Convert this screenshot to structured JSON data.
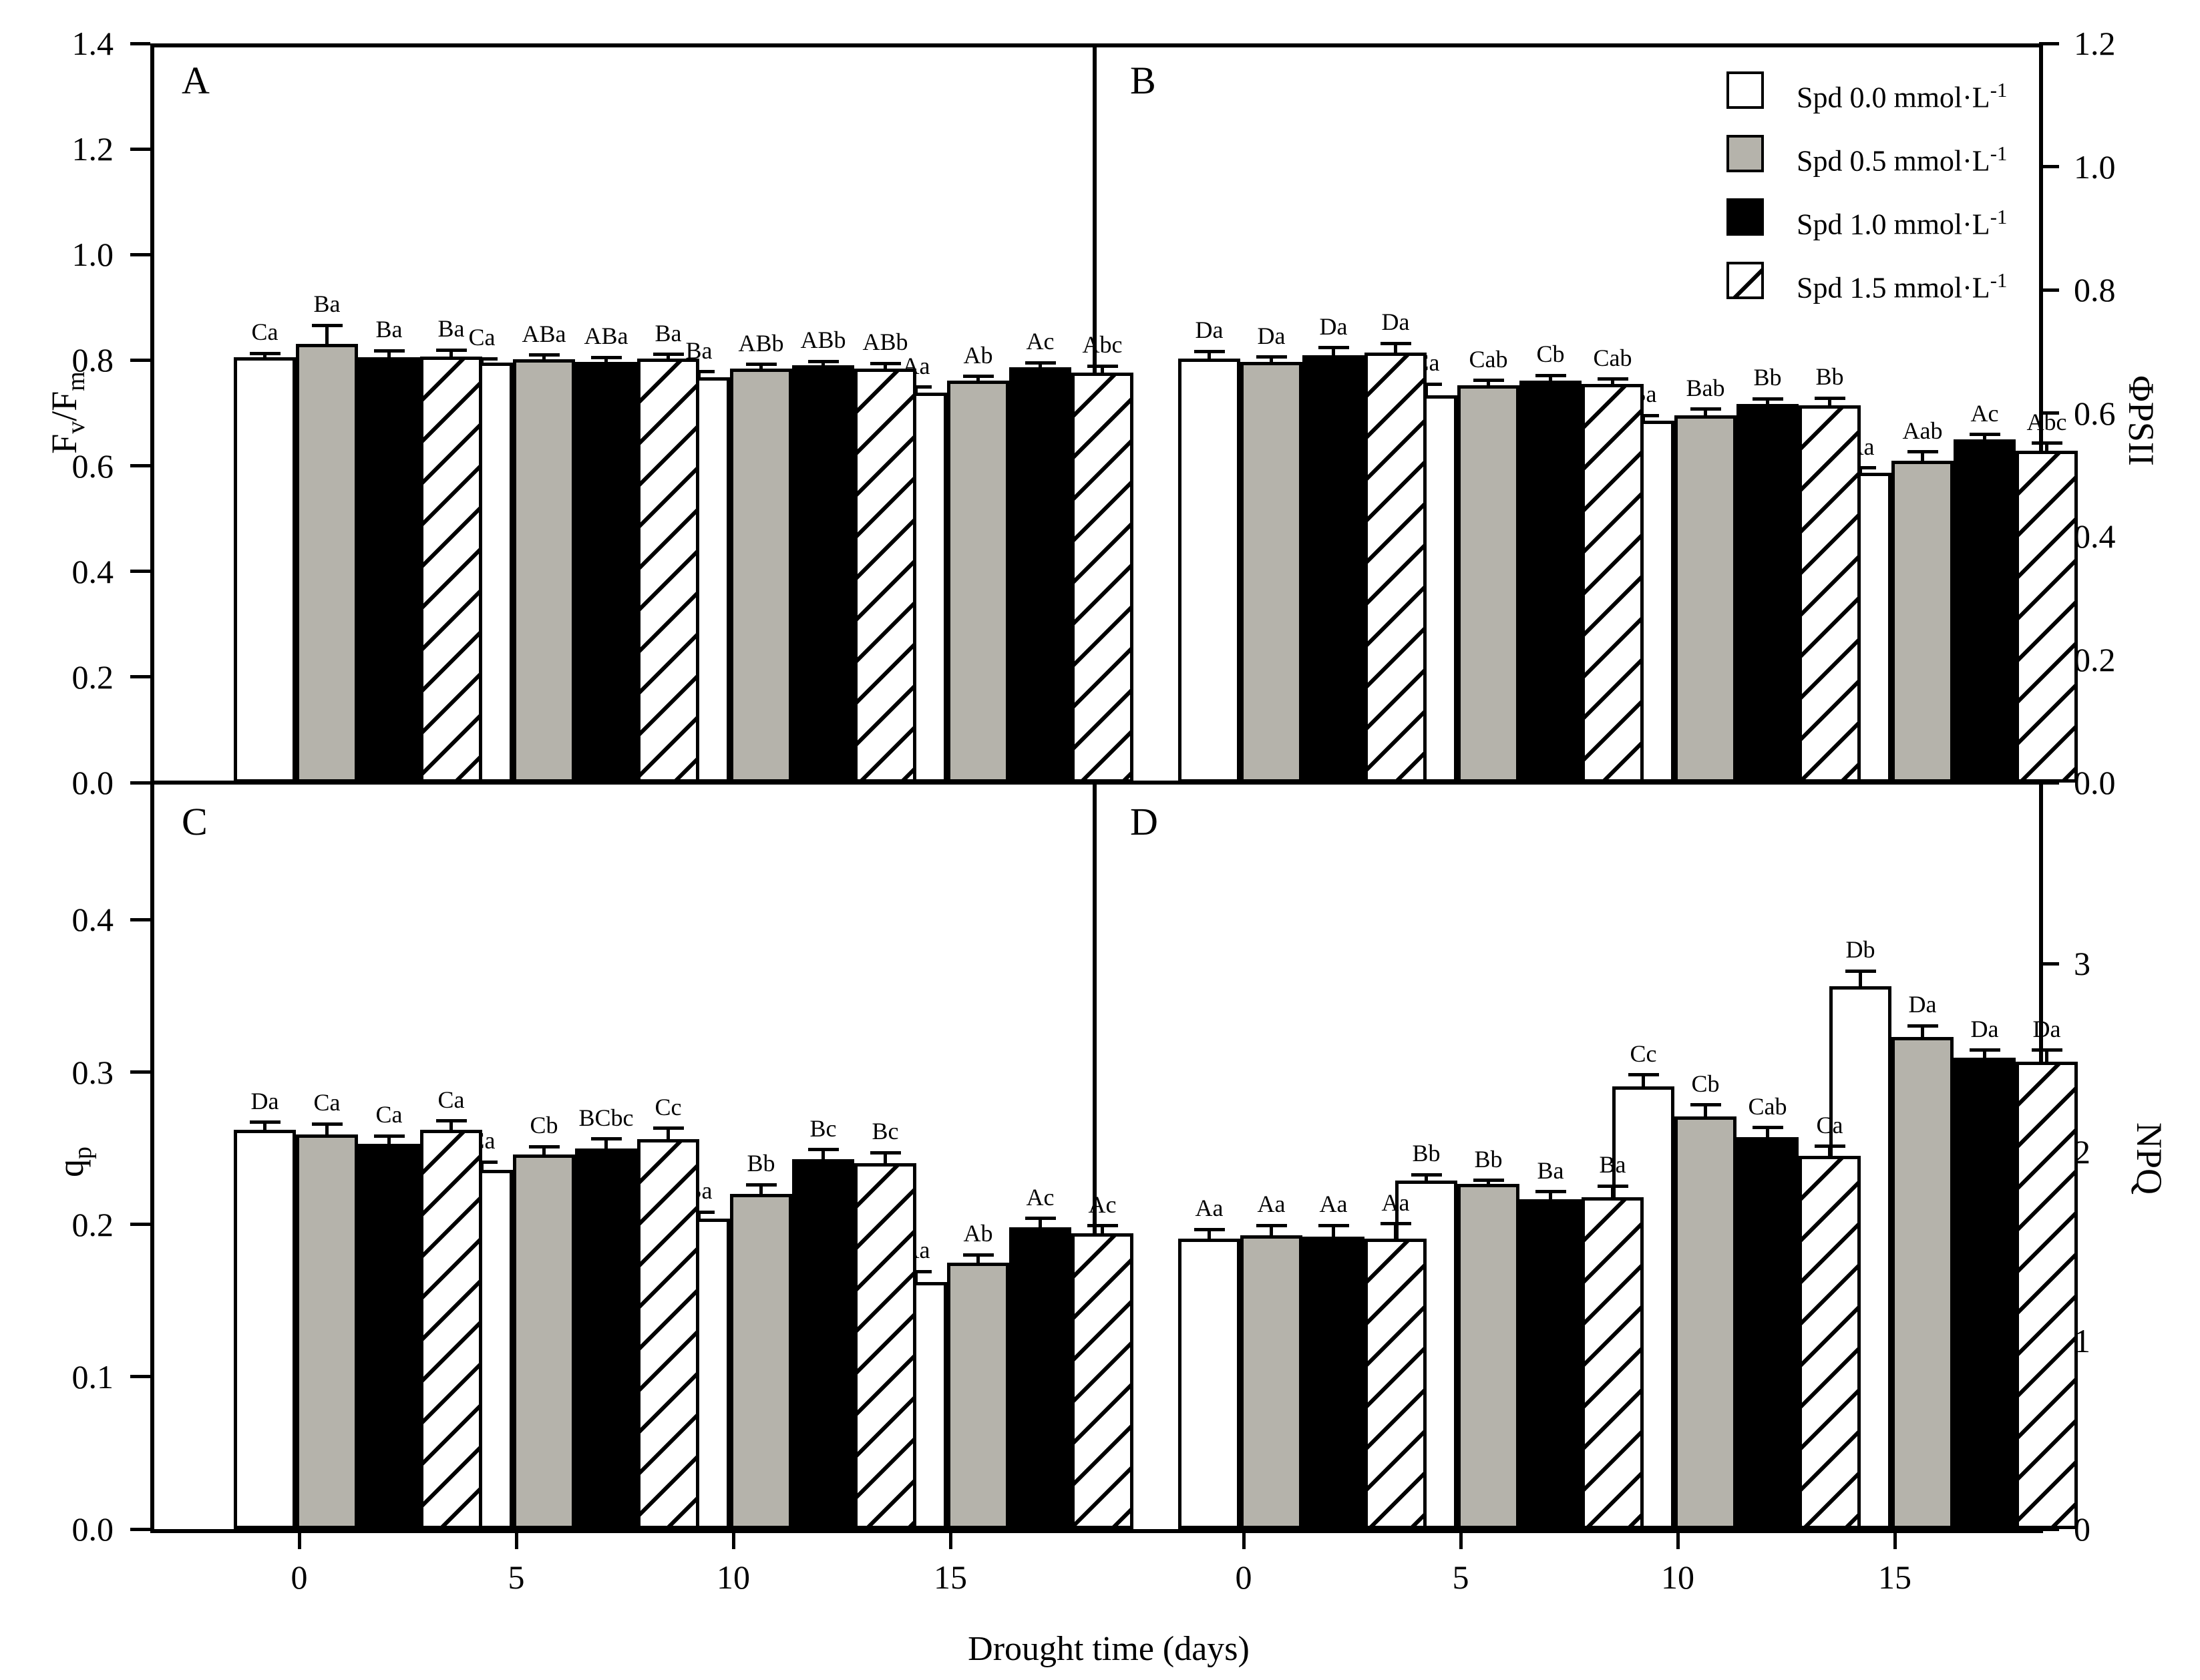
{
  "figure": {
    "background": "#ffffff",
    "ink": "#000000",
    "bar_gray_hex": "#b5b3ab"
  },
  "xlabel": "Drought time (days)",
  "x_categories": [
    "0",
    "5",
    "10",
    "15"
  ],
  "legend": {
    "items": [
      {
        "fill": "white",
        "label": "Spd 0.0 mmol·L^-1"
      },
      {
        "fill": "gray",
        "label": "Spd 0.5 mmol·L^-1"
      },
      {
        "fill": "black",
        "label": "Spd 1.0 mmol·L^-1"
      },
      {
        "fill": "hatch",
        "label": "Spd 1.5 mmol·L^-1"
      }
    ]
  },
  "chart_data": [
    {
      "type": "bar",
      "letter": "A",
      "ylabel": "F_v/F_m",
      "axis_side": "left",
      "col": 0,
      "row": 0,
      "ylim": [
        0,
        1.4
      ],
      "grid": false,
      "yticks": [
        {
          "v": 0.0,
          "label": "0.0"
        },
        {
          "v": 0.2,
          "label": "0.2"
        },
        {
          "v": 0.4,
          "label": "0.4"
        },
        {
          "v": 0.6,
          "label": "0.6"
        },
        {
          "v": 0.8,
          "label": "0.8"
        },
        {
          "v": 1.0,
          "label": "1.0"
        },
        {
          "v": 1.2,
          "label": "1.2"
        },
        {
          "v": 1.4,
          "label": "1.4"
        }
      ],
      "categories": [
        "0",
        "5",
        "10",
        "15"
      ],
      "series": [
        {
          "name": "Spd 0.0 mmol·L^-1",
          "fill": "white",
          "values": [
            0.805,
            0.795,
            0.768,
            0.739
          ],
          "errors": [
            0.008,
            0.008,
            0.01,
            0.01
          ],
          "sig": [
            "Ca",
            "Ca",
            "Ba",
            "Aa"
          ]
        },
        {
          "name": "Spd 0.5 mmol·L^-1",
          "fill": "gray",
          "values": [
            0.831,
            0.802,
            0.784,
            0.761
          ],
          "errors": [
            0.035,
            0.008,
            0.008,
            0.008
          ],
          "sig": [
            "Ba",
            "ABa",
            "ABb",
            "Ab"
          ]
        },
        {
          "name": "Spd 1.0 mmol·L^-1",
          "fill": "black",
          "values": [
            0.806,
            0.797,
            0.79,
            0.787
          ],
          "errors": [
            0.012,
            0.008,
            0.008,
            0.008
          ],
          "sig": [
            "Ba",
            "ABa",
            "ABb",
            "Ac"
          ]
        },
        {
          "name": "Spd 1.5 mmol·L^-1",
          "fill": "hatch",
          "values": [
            0.807,
            0.803,
            0.784,
            0.777
          ],
          "errors": [
            0.012,
            0.008,
            0.01,
            0.012
          ],
          "sig": [
            "Ba",
            "Ba",
            "ABb",
            "Abc"
          ]
        }
      ]
    },
    {
      "type": "bar",
      "letter": "B",
      "ylabel": "ΦPSII",
      "axis_side": "right",
      "col": 1,
      "row": 0,
      "ylim": [
        0,
        1.2
      ],
      "grid": false,
      "yticks": [
        {
          "v": 0.0,
          "label": "0.0"
        },
        {
          "v": 0.2,
          "label": "0.2"
        },
        {
          "v": 0.4,
          "label": "0.4"
        },
        {
          "v": 0.6,
          "label": "0.6"
        },
        {
          "v": 0.8,
          "label": "0.8"
        },
        {
          "v": 1.0,
          "label": "1.0"
        },
        {
          "v": 1.2,
          "label": "1.2"
        }
      ],
      "categories": [
        "0",
        "5",
        "10",
        "15"
      ],
      "series": [
        {
          "name": "Spd 0.0 mmol·L^-1",
          "fill": "white",
          "values": [
            0.688,
            0.629,
            0.588,
            0.503
          ],
          "errors": [
            0.012,
            0.018,
            0.008,
            0.008
          ],
          "sig": [
            "Da",
            "Ca",
            "Ba",
            "Aa"
          ]
        },
        {
          "name": "Spd 0.5 mmol·L^-1",
          "fill": "gray",
          "values": [
            0.683,
            0.645,
            0.596,
            0.522
          ],
          "errors": [
            0.008,
            0.008,
            0.01,
            0.015
          ],
          "sig": [
            "Da",
            "Cab",
            "Bab",
            "Aab"
          ]
        },
        {
          "name": "Spd 1.0 mmol·L^-1",
          "fill": "black",
          "values": [
            0.694,
            0.653,
            0.615,
            0.557
          ],
          "errors": [
            0.012,
            0.008,
            0.008,
            0.008
          ],
          "sig": [
            "Da",
            "Cb",
            "Bb",
            "Ac"
          ]
        },
        {
          "name": "Spd 1.5 mmol·L^-1",
          "fill": "hatch",
          "values": [
            0.698,
            0.647,
            0.612,
            0.539
          ],
          "errors": [
            0.015,
            0.008,
            0.012,
            0.012
          ],
          "sig": [
            "Da",
            "Cab",
            "Bb",
            "Abc"
          ]
        }
      ]
    },
    {
      "type": "bar",
      "letter": "C",
      "ylabel": "q_p",
      "axis_side": "left",
      "col": 0,
      "row": 1,
      "ylim": [
        0,
        0.49
      ],
      "grid": false,
      "yticks": [
        {
          "v": 0.0,
          "label": "0.0"
        },
        {
          "v": 0.1,
          "label": "0.1"
        },
        {
          "v": 0.2,
          "label": "0.2"
        },
        {
          "v": 0.3,
          "label": "0.3"
        },
        {
          "v": 0.4,
          "label": "0.4"
        }
      ],
      "categories": [
        "0",
        "5",
        "10",
        "15"
      ],
      "series": [
        {
          "name": "Spd 0.0 mmol·L^-1",
          "fill": "white",
          "values": [
            0.262,
            0.236,
            0.204,
            0.162
          ],
          "errors": [
            0.005,
            0.005,
            0.004,
            0.007
          ],
          "sig": [
            "Da",
            "Ca",
            "Ba",
            "Aa"
          ]
        },
        {
          "name": "Spd 0.5 mmol·L^-1",
          "fill": "gray",
          "values": [
            0.259,
            0.246,
            0.22,
            0.175
          ],
          "errors": [
            0.007,
            0.005,
            0.006,
            0.005
          ],
          "sig": [
            "Ca",
            "Cb",
            "Bb",
            "Ab"
          ]
        },
        {
          "name": "Spd 1.0 mmol·L^-1",
          "fill": "black",
          "values": [
            0.253,
            0.25,
            0.243,
            0.198
          ],
          "errors": [
            0.005,
            0.006,
            0.006,
            0.006
          ],
          "sig": [
            "Ca",
            "BCbc",
            "Bc",
            "Ac"
          ]
        },
        {
          "name": "Spd 1.5 mmol·L^-1",
          "fill": "hatch",
          "values": [
            0.262,
            0.256,
            0.24,
            0.194
          ],
          "errors": [
            0.006,
            0.007,
            0.007,
            0.005
          ],
          "sig": [
            "Ca",
            "Cc",
            "Bc",
            "Ac"
          ]
        }
      ]
    },
    {
      "type": "bar",
      "letter": "D",
      "ylabel": "NPQ",
      "axis_side": "right",
      "col": 1,
      "row": 1,
      "ylim": [
        0,
        3.96
      ],
      "grid": false,
      "yticks": [
        {
          "v": 0,
          "label": "0"
        },
        {
          "v": 1,
          "label": "1"
        },
        {
          "v": 2,
          "label": "2"
        },
        {
          "v": 3,
          "label": "3"
        }
      ],
      "categories": [
        "0",
        "5",
        "10",
        "15"
      ],
      "series": [
        {
          "name": "Spd 0.0 mmol·L^-1",
          "fill": "white",
          "values": [
            1.54,
            1.85,
            2.35,
            2.88
          ],
          "errors": [
            0.05,
            0.03,
            0.06,
            0.08
          ],
          "sig": [
            "Aa",
            "Bb",
            "Cc",
            "Db"
          ]
        },
        {
          "name": "Spd 0.5 mmol·L^-1",
          "fill": "gray",
          "values": [
            1.56,
            1.83,
            2.19,
            2.61
          ],
          "errors": [
            0.05,
            0.02,
            0.06,
            0.06
          ],
          "sig": [
            "Aa",
            "Bb",
            "Cb",
            "Da"
          ]
        },
        {
          "name": "Spd 1.0 mmol·L^-1",
          "fill": "black",
          "values": [
            1.55,
            1.75,
            2.08,
            2.5
          ],
          "errors": [
            0.06,
            0.04,
            0.05,
            0.04
          ],
          "sig": [
            "Aa",
            "Ba",
            "Cab",
            "Da"
          ]
        },
        {
          "name": "Spd 1.5 mmol·L^-1",
          "fill": "hatch",
          "values": [
            1.54,
            1.76,
            1.98,
            2.48
          ],
          "errors": [
            0.08,
            0.06,
            0.05,
            0.06
          ],
          "sig": [
            "Aa",
            "Ba",
            "Ca",
            "Da"
          ]
        }
      ]
    }
  ]
}
